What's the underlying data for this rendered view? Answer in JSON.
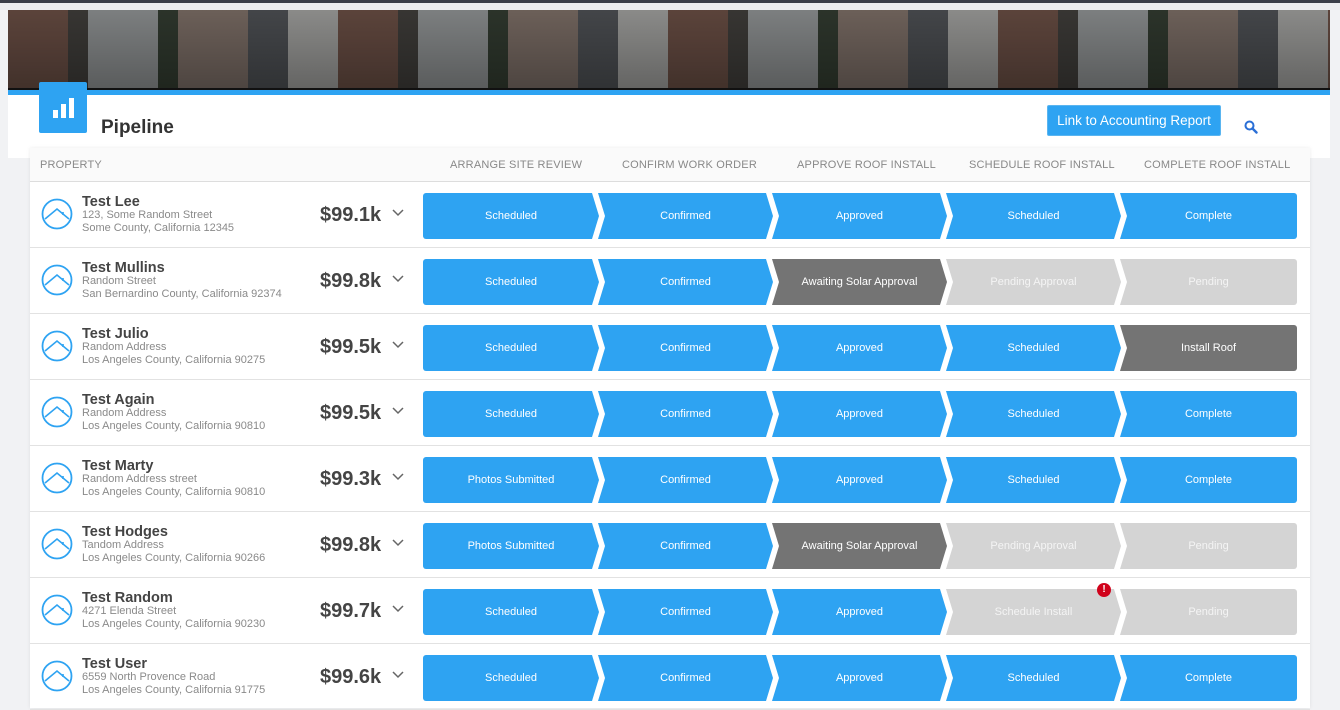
{
  "header": {
    "title": "Pipeline",
    "accounting_button": "Link to Accounting Report",
    "icons": {
      "logo": "bar-chart-icon",
      "search": "search-icon"
    }
  },
  "colors": {
    "accent": "#2ea3f2",
    "awaiting": "#747474",
    "pending": "#d4d4d4",
    "error": "#d0021b"
  },
  "columns": [
    "PROPERTY",
    "ARRANGE SITE REVIEW",
    "CONFIRM WORK ORDER",
    "APPROVE ROOF INSTALL",
    "SCHEDULE ROOF INSTALL",
    "COMPLETE ROOF INSTALL"
  ],
  "rows": [
    {
      "name": "Test Lee",
      "addr1": "123, Some Random Street",
      "addr2": "Some County, California 12345",
      "price": "$99.1k",
      "stages": [
        [
          "Scheduled",
          "blue"
        ],
        [
          "Confirmed",
          "blue"
        ],
        [
          "Approved",
          "blue"
        ],
        [
          "Scheduled",
          "blue"
        ],
        [
          "Complete",
          "blue"
        ]
      ]
    },
    {
      "name": "Test Mullins",
      "addr1": "Random Street",
      "addr2": "San Bernardino County, California 92374",
      "price": "$99.8k",
      "stages": [
        [
          "Scheduled",
          "blue"
        ],
        [
          "Confirmed",
          "blue"
        ],
        [
          "Awaiting Solar Approval",
          "dark"
        ],
        [
          "Pending Approval",
          "light"
        ],
        [
          "Pending",
          "light"
        ]
      ]
    },
    {
      "name": "Test Julio",
      "addr1": "Random Address",
      "addr2": "Los Angeles County, California 90275",
      "price": "$99.5k",
      "stages": [
        [
          "Scheduled",
          "blue"
        ],
        [
          "Confirmed",
          "blue"
        ],
        [
          "Approved",
          "blue"
        ],
        [
          "Scheduled",
          "blue"
        ],
        [
          "Install Roof",
          "dark"
        ]
      ]
    },
    {
      "name": "Test Again",
      "addr1": "Random Address",
      "addr2": "Los Angeles County, California 90810",
      "price": "$99.5k",
      "stages": [
        [
          "Scheduled",
          "blue"
        ],
        [
          "Confirmed",
          "blue"
        ],
        [
          "Approved",
          "blue"
        ],
        [
          "Scheduled",
          "blue"
        ],
        [
          "Complete",
          "blue"
        ]
      ]
    },
    {
      "name": "Test Marty",
      "addr1": "Random Address street",
      "addr2": "Los Angeles County, California 90810",
      "price": "$99.3k",
      "stages": [
        [
          "Photos Submitted",
          "blue"
        ],
        [
          "Confirmed",
          "blue"
        ],
        [
          "Approved",
          "blue"
        ],
        [
          "Scheduled",
          "blue"
        ],
        [
          "Complete",
          "blue"
        ]
      ]
    },
    {
      "name": "Test Hodges",
      "addr1": "Tandom Address",
      "addr2": "Los Angeles County, California 90266",
      "price": "$99.8k",
      "stages": [
        [
          "Photos Submitted",
          "blue"
        ],
        [
          "Confirmed",
          "blue"
        ],
        [
          "Awaiting Solar Approval",
          "dark"
        ],
        [
          "Pending Approval",
          "light"
        ],
        [
          "Pending",
          "light"
        ]
      ]
    },
    {
      "name": "Test Random",
      "addr1": "4271 Elenda Street",
      "addr2": "Los Angeles County, California 90230",
      "price": "$99.7k",
      "stages": [
        [
          "Scheduled",
          "blue"
        ],
        [
          "Confirmed",
          "blue"
        ],
        [
          "Approved",
          "blue"
        ],
        [
          "Schedule Install",
          "light",
          "!"
        ],
        [
          "Pending",
          "light"
        ]
      ]
    },
    {
      "name": "Test User",
      "addr1": "6559 North Provence Road",
      "addr2": "Los Angeles County, California 91775",
      "price": "$99.6k",
      "stages": [
        [
          "Scheduled",
          "blue"
        ],
        [
          "Confirmed",
          "blue"
        ],
        [
          "Approved",
          "blue"
        ],
        [
          "Scheduled",
          "blue"
        ],
        [
          "Complete",
          "blue"
        ]
      ]
    }
  ]
}
